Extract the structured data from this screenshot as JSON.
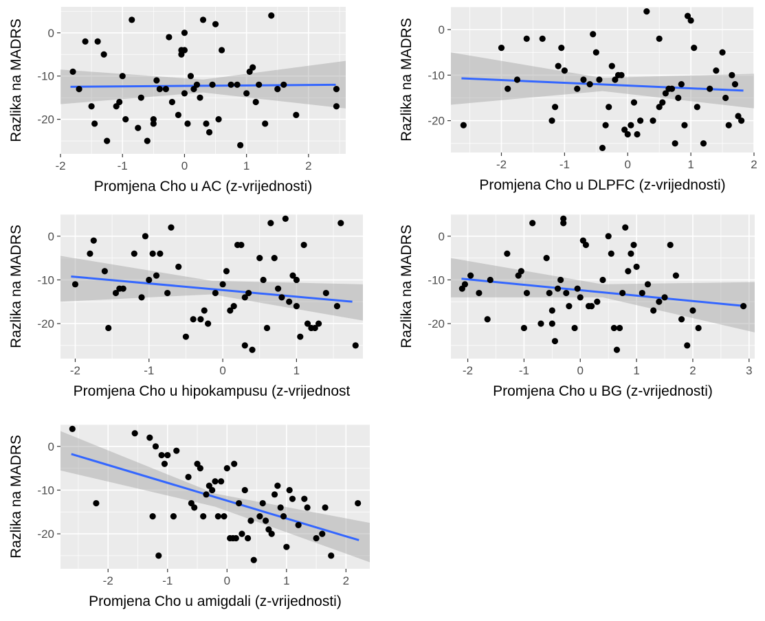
{
  "figure": {
    "background_color": "#ffffff",
    "panel_background_color": "#ebebeb",
    "grid_color": "#ffffff",
    "point_color": "#000000",
    "line_color": "#3366ff",
    "band_color": "#999999"
  },
  "chart_data": [
    {
      "type": "scatter",
      "title": "",
      "xlabel": "Promjena Cho u AC (z-vrijednosti)",
      "ylabel": "Razlika na MADRS",
      "grid": true,
      "xlim": [
        -2.0,
        2.6
      ],
      "ylim": [
        -28,
        6
      ],
      "xticks": [
        -2,
        -1,
        0,
        1,
        2
      ],
      "xtick_labels": [
        "-2",
        "-1",
        "0",
        "1",
        "2"
      ],
      "yticks": [
        0,
        -10,
        -20
      ],
      "ytick_labels": [
        "0",
        "-10",
        "-20"
      ],
      "trend": {
        "y_at_xmin": -12.5,
        "y_at_xmax": -12.0,
        "band_left": [
          -16.5,
          -8.5
        ],
        "band_mid": [
          -13.8,
          -10.8
        ],
        "band_right": [
          -17.5,
          -6.5
        ]
      },
      "points": [
        [
          -1.8,
          -9
        ],
        [
          -1.7,
          -13
        ],
        [
          -1.6,
          -2
        ],
        [
          -1.5,
          -17
        ],
        [
          -1.45,
          -21
        ],
        [
          -1.4,
          -2
        ],
        [
          -1.3,
          -5
        ],
        [
          -1.25,
          -25
        ],
        [
          -1.1,
          -17
        ],
        [
          -1.05,
          -16
        ],
        [
          -1.0,
          -10
        ],
        [
          -0.95,
          -20
        ],
        [
          -0.85,
          3
        ],
        [
          -0.75,
          -22
        ],
        [
          -0.7,
          -15
        ],
        [
          -0.6,
          -25
        ],
        [
          -0.5,
          -20
        ],
        [
          -0.5,
          -21
        ],
        [
          -0.45,
          -11
        ],
        [
          -0.4,
          -13
        ],
        [
          -0.3,
          -13
        ],
        [
          -0.25,
          -1
        ],
        [
          -0.2,
          -16
        ],
        [
          -0.1,
          -19
        ],
        [
          -0.05,
          -4
        ],
        [
          -0.05,
          -5
        ],
        [
          0.0,
          -4
        ],
        [
          0.0,
          -14
        ],
        [
          0.0,
          0
        ],
        [
          0.05,
          -21
        ],
        [
          0.1,
          -10
        ],
        [
          0.15,
          -13
        ],
        [
          0.2,
          -12
        ],
        [
          0.25,
          -15
        ],
        [
          0.3,
          3
        ],
        [
          0.35,
          -21
        ],
        [
          0.4,
          -23
        ],
        [
          0.45,
          -12
        ],
        [
          0.5,
          2
        ],
        [
          0.55,
          -20
        ],
        [
          0.6,
          -4
        ],
        [
          0.75,
          -12
        ],
        [
          0.85,
          -12
        ],
        [
          0.9,
          -26
        ],
        [
          1.0,
          -14
        ],
        [
          1.05,
          -9
        ],
        [
          1.1,
          -8
        ],
        [
          1.15,
          -16
        ],
        [
          1.2,
          -12
        ],
        [
          1.3,
          -21
        ],
        [
          1.4,
          4
        ],
        [
          1.5,
          -13
        ],
        [
          1.6,
          -12
        ],
        [
          1.8,
          -19
        ],
        [
          2.45,
          -13
        ],
        [
          2.45,
          -17
        ]
      ]
    },
    {
      "type": "scatter",
      "title": "",
      "xlabel": "Promjena Cho u DLPFC (z-vrijednosti)",
      "ylabel": "Razlika na MADRS",
      "grid": true,
      "xlim": [
        -2.8,
        2.0
      ],
      "ylim": [
        -27,
        5
      ],
      "xticks": [
        -2,
        -1,
        0,
        1,
        2
      ],
      "xtick_labels": [
        "-2",
        "-1",
        "0",
        "1",
        "2"
      ],
      "yticks": [
        0,
        -10,
        -20
      ],
      "ytick_labels": [
        "0",
        "-10",
        "-20"
      ],
      "trend": {
        "y_at_xmin": -10.6,
        "y_at_xmax": -13.5,
        "band_left": [
          -16.5,
          -5.0
        ],
        "band_mid": [
          -13.5,
          -10.6
        ],
        "band_right": [
          -17.3,
          -9.7
        ]
      },
      "points": [
        [
          -2.6,
          -21
        ],
        [
          -2.0,
          -4
        ],
        [
          -1.9,
          -13
        ],
        [
          -1.75,
          -11
        ],
        [
          -1.6,
          -2
        ],
        [
          -1.35,
          -2
        ],
        [
          -1.2,
          -20
        ],
        [
          -1.15,
          -17
        ],
        [
          -1.1,
          -8
        ],
        [
          -1.05,
          -4
        ],
        [
          -1.0,
          -9
        ],
        [
          -0.8,
          -13
        ],
        [
          -0.7,
          -11
        ],
        [
          -0.6,
          -12
        ],
        [
          -0.55,
          -1
        ],
        [
          -0.5,
          -5
        ],
        [
          -0.45,
          -11
        ],
        [
          -0.4,
          -26
        ],
        [
          -0.35,
          -21
        ],
        [
          -0.3,
          -17
        ],
        [
          -0.25,
          -8
        ],
        [
          -0.2,
          -11
        ],
        [
          -0.15,
          -10
        ],
        [
          -0.1,
          -10
        ],
        [
          -0.05,
          -22
        ],
        [
          0.0,
          -23
        ],
        [
          0.05,
          -21
        ],
        [
          0.1,
          -16
        ],
        [
          0.15,
          -23
        ],
        [
          0.2,
          -20
        ],
        [
          0.3,
          4
        ],
        [
          0.4,
          -20
        ],
        [
          0.5,
          -17
        ],
        [
          0.5,
          -2
        ],
        [
          0.55,
          -16
        ],
        [
          0.6,
          -14
        ],
        [
          0.65,
          -13
        ],
        [
          0.7,
          -13
        ],
        [
          0.75,
          -25
        ],
        [
          0.8,
          -15
        ],
        [
          0.85,
          -12
        ],
        [
          0.9,
          -21
        ],
        [
          0.95,
          3
        ],
        [
          1.0,
          2
        ],
        [
          1.05,
          -4
        ],
        [
          1.1,
          -17
        ],
        [
          1.2,
          -25
        ],
        [
          1.3,
          -13
        ],
        [
          1.4,
          -9
        ],
        [
          1.5,
          -5
        ],
        [
          1.55,
          -15
        ],
        [
          1.6,
          -21
        ],
        [
          1.65,
          -10
        ],
        [
          1.7,
          -12
        ],
        [
          1.75,
          -19
        ],
        [
          1.8,
          -20
        ]
      ]
    },
    {
      "type": "scatter",
      "title": "",
      "xlabel": "Promjena Cho u hipokampusu (z-vrijednost",
      "ylabel": "Razlika na MADRS",
      "grid": true,
      "xlim": [
        -2.2,
        1.9
      ],
      "ylim": [
        -28,
        5
      ],
      "xticks": [
        -2,
        -1,
        0,
        1
      ],
      "xtick_labels": [
        "-2",
        "-1",
        "0",
        "1"
      ],
      "yticks": [
        0,
        -10,
        -20
      ],
      "ytick_labels": [
        "0",
        "-10",
        "-20"
      ],
      "trend": {
        "y_at_xmin": -9.0,
        "y_at_xmax": -15.2,
        "band_left": [
          -15.0,
          -4.5
        ],
        "band_mid": [
          -13.3,
          -10.2
        ],
        "band_right": [
          -19.3,
          -11.0
        ]
      },
      "points": [
        [
          -2.0,
          -11
        ],
        [
          -1.8,
          -4
        ],
        [
          -1.75,
          -1
        ],
        [
          -1.6,
          -8
        ],
        [
          -1.55,
          -21
        ],
        [
          -1.45,
          -13
        ],
        [
          -1.4,
          -12
        ],
        [
          -1.35,
          -12
        ],
        [
          -1.2,
          -4
        ],
        [
          -1.1,
          -14
        ],
        [
          -1.05,
          0
        ],
        [
          -1.0,
          -10
        ],
        [
          -0.95,
          -4
        ],
        [
          -0.9,
          -9
        ],
        [
          -0.85,
          -4
        ],
        [
          -0.75,
          -13
        ],
        [
          -0.7,
          2
        ],
        [
          -0.6,
          -7
        ],
        [
          -0.5,
          -23
        ],
        [
          -0.4,
          -19
        ],
        [
          -0.3,
          -19
        ],
        [
          -0.25,
          -17
        ],
        [
          -0.2,
          -20
        ],
        [
          -0.1,
          -13
        ],
        [
          0.0,
          -11
        ],
        [
          0.05,
          -8
        ],
        [
          0.1,
          -17
        ],
        [
          0.15,
          -16
        ],
        [
          0.2,
          -2
        ],
        [
          0.25,
          -2
        ],
        [
          0.3,
          -14
        ],
        [
          0.3,
          -25
        ],
        [
          0.35,
          -13
        ],
        [
          0.4,
          -26
        ],
        [
          0.5,
          -5
        ],
        [
          0.55,
          -10
        ],
        [
          0.6,
          -21
        ],
        [
          0.65,
          3
        ],
        [
          0.7,
          -5
        ],
        [
          0.75,
          -12
        ],
        [
          0.8,
          -14
        ],
        [
          0.85,
          4
        ],
        [
          0.9,
          -15
        ],
        [
          0.95,
          -9
        ],
        [
          1.0,
          -10
        ],
        [
          1.0,
          -16
        ],
        [
          1.05,
          -23
        ],
        [
          1.1,
          -2
        ],
        [
          1.15,
          -20
        ],
        [
          1.2,
          -21
        ],
        [
          1.25,
          -21
        ],
        [
          1.3,
          -20
        ],
        [
          1.4,
          -13
        ],
        [
          1.55,
          -16
        ],
        [
          1.6,
          3
        ],
        [
          1.8,
          -25
        ]
      ]
    },
    {
      "type": "scatter",
      "title": "",
      "xlabel": "Promjena Cho u BG (z-vrijednosti)",
      "ylabel": "Razlika na MADRS",
      "grid": true,
      "xlim": [
        -2.3,
        3.1
      ],
      "ylim": [
        -28,
        5
      ],
      "xticks": [
        -2,
        -1,
        0,
        1,
        2,
        3
      ],
      "xtick_labels": [
        "-2",
        "-1",
        "0",
        "1",
        "2",
        "3"
      ],
      "yticks": [
        0,
        -10,
        -20
      ],
      "ytick_labels": [
        "0",
        "-10",
        "-20"
      ],
      "trend": {
        "y_at_xmin": -9.5,
        "y_at_xmax": -16.2,
        "band_left": [
          -14.0,
          -5.0
        ],
        "band_mid": [
          -14.0,
          -11.0
        ],
        "band_right": [
          -22.0,
          -10.5
        ]
      },
      "points": [
        [
          -2.1,
          -12
        ],
        [
          -2.05,
          -11
        ],
        [
          -1.95,
          -9
        ],
        [
          -1.8,
          -13
        ],
        [
          -1.65,
          -19
        ],
        [
          -1.6,
          -10
        ],
        [
          -1.3,
          -4
        ],
        [
          -1.1,
          -9
        ],
        [
          -1.05,
          -8
        ],
        [
          -1.0,
          -21
        ],
        [
          -0.95,
          -13
        ],
        [
          -0.85,
          3
        ],
        [
          -0.7,
          -20
        ],
        [
          -0.6,
          -5
        ],
        [
          -0.55,
          -13
        ],
        [
          -0.5,
          -17
        ],
        [
          -0.5,
          -20
        ],
        [
          -0.45,
          -24
        ],
        [
          -0.4,
          -12
        ],
        [
          -0.35,
          -10
        ],
        [
          -0.3,
          3
        ],
        [
          -0.3,
          4
        ],
        [
          -0.25,
          -13
        ],
        [
          -0.2,
          -16
        ],
        [
          -0.1,
          -21
        ],
        [
          -0.05,
          -12
        ],
        [
          0.0,
          -14
        ],
        [
          0.05,
          -1
        ],
        [
          0.1,
          -2
        ],
        [
          0.15,
          -16
        ],
        [
          0.2,
          -16
        ],
        [
          0.3,
          -15
        ],
        [
          0.4,
          -10
        ],
        [
          0.5,
          0
        ],
        [
          0.55,
          -4
        ],
        [
          0.6,
          -21
        ],
        [
          0.65,
          -26
        ],
        [
          0.7,
          -21
        ],
        [
          0.75,
          -13
        ],
        [
          0.8,
          2
        ],
        [
          0.85,
          -8
        ],
        [
          0.9,
          -4
        ],
        [
          0.95,
          -2
        ],
        [
          1.0,
          -7
        ],
        [
          1.1,
          -13
        ],
        [
          1.2,
          -11
        ],
        [
          1.3,
          -17
        ],
        [
          1.4,
          -15
        ],
        [
          1.5,
          -14
        ],
        [
          1.6,
          -2
        ],
        [
          1.7,
          -9
        ],
        [
          1.8,
          -19
        ],
        [
          1.9,
          -25
        ],
        [
          2.0,
          -17
        ],
        [
          2.1,
          -21
        ],
        [
          2.9,
          -16
        ]
      ]
    },
    {
      "type": "scatter",
      "title": "",
      "xlabel": "Promjena Cho u amigdali (z-vrijednosti)",
      "ylabel": "Razlika na MADRS",
      "grid": true,
      "xlim": [
        -2.8,
        2.4
      ],
      "ylim": [
        -28,
        5
      ],
      "xticks": [
        -2,
        -1,
        0,
        1,
        2
      ],
      "xtick_labels": [
        "-2",
        "-1",
        "0",
        "1",
        "2"
      ],
      "yticks": [
        0,
        -10,
        -20
      ],
      "ytick_labels": [
        "0",
        "-10",
        "-20"
      ],
      "trend": {
        "y_at_xmin": -1.0,
        "y_at_xmax": -22.2,
        "band_left": [
          -5.5,
          3.5
        ],
        "band_mid": [
          -13.8,
          -10.8
        ],
        "band_right": [
          -26.5,
          -17.5
        ]
      },
      "points": [
        [
          -2.6,
          4
        ],
        [
          -2.2,
          -13
        ],
        [
          -1.55,
          3
        ],
        [
          -1.3,
          2
        ],
        [
          -1.25,
          -16
        ],
        [
          -1.2,
          0
        ],
        [
          -1.15,
          -25
        ],
        [
          -1.1,
          -2
        ],
        [
          -1.05,
          -4
        ],
        [
          -1.0,
          -2
        ],
        [
          -0.9,
          -16
        ],
        [
          -0.85,
          -1
        ],
        [
          -0.65,
          -7
        ],
        [
          -0.6,
          -13
        ],
        [
          -0.55,
          -14
        ],
        [
          -0.5,
          -4
        ],
        [
          -0.45,
          -5
        ],
        [
          -0.4,
          -16
        ],
        [
          -0.3,
          -9
        ],
        [
          -0.25,
          -10
        ],
        [
          -0.2,
          -8
        ],
        [
          -0.15,
          -16
        ],
        [
          -0.1,
          -8
        ],
        [
          -0.05,
          -16
        ],
        [
          0.0,
          -5
        ],
        [
          0.05,
          -21
        ],
        [
          0.1,
          -21
        ],
        [
          0.15,
          -21
        ],
        [
          0.2,
          -13
        ],
        [
          0.25,
          -20
        ],
        [
          0.3,
          -10
        ],
        [
          0.35,
          -21
        ],
        [
          0.4,
          -17
        ],
        [
          0.45,
          -26
        ],
        [
          0.55,
          -16
        ],
        [
          0.6,
          -13
        ],
        [
          0.65,
          -17
        ],
        [
          0.7,
          -19
        ],
        [
          0.75,
          -20
        ],
        [
          0.8,
          -11
        ],
        [
          0.85,
          -9
        ],
        [
          0.9,
          -14
        ],
        [
          0.95,
          -16
        ],
        [
          1.0,
          -23
        ],
        [
          1.05,
          -10
        ],
        [
          1.1,
          -12
        ],
        [
          1.2,
          -18
        ],
        [
          1.3,
          -12
        ],
        [
          1.35,
          -14
        ],
        [
          1.5,
          -21
        ],
        [
          1.6,
          -20
        ],
        [
          1.65,
          -14
        ],
        [
          1.75,
          -25
        ],
        [
          2.2,
          -13
        ],
        [
          0.12,
          -4
        ],
        [
          -0.35,
          -11
        ]
      ]
    }
  ]
}
